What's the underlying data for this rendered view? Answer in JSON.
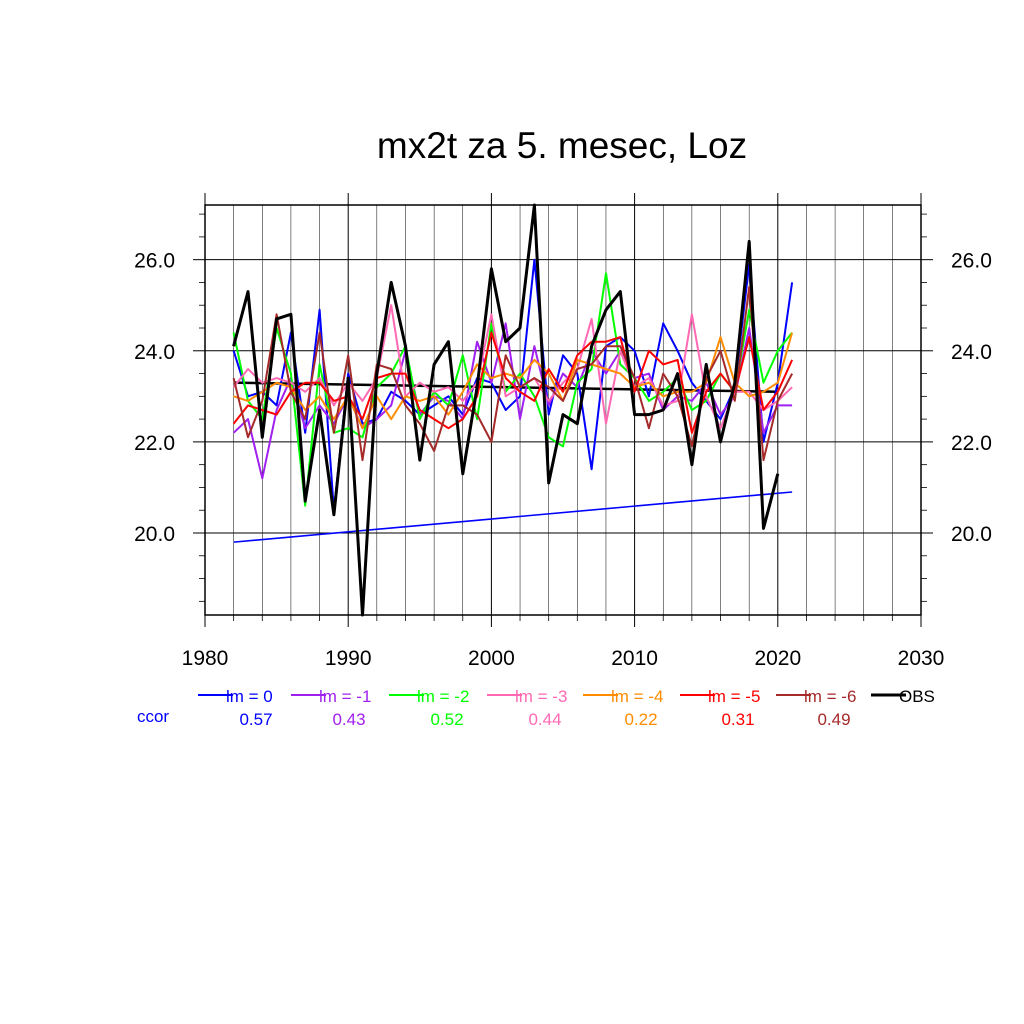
{
  "chart_data": {
    "type": "line",
    "title": "mx2t za 5. mesec, Loz",
    "xlabel": "",
    "ylabel": "",
    "xlim": [
      1980,
      2030
    ],
    "ylim": [
      18.2,
      27.2
    ],
    "x_ticks": [
      1980,
      1990,
      2000,
      2010,
      2020,
      2030
    ],
    "y_ticks": [
      20.0,
      22.0,
      24.0,
      26.0
    ],
    "y_tick_labels": [
      "20.0",
      "22.0",
      "24.0",
      "26.0"
    ],
    "grid": true,
    "legend_position": "bottom",
    "ccor_label": "ccor",
    "ccor_color": "#0000ff",
    "series": [
      {
        "name": "lm = 0",
        "color": "#0000ff",
        "ccor": "0.57",
        "x": [
          1982,
          1983,
          1984,
          1985,
          1986,
          1987,
          1988,
          1989,
          1990,
          1991,
          1992,
          1993,
          1994,
          1995,
          1996,
          1997,
          1998,
          1999,
          2000,
          2001,
          2002,
          2003,
          2004,
          2005,
          2006,
          2007,
          2008,
          2009,
          2010,
          2011,
          2012,
          2013,
          2014,
          2015,
          2016,
          2017,
          2018,
          2019,
          2020,
          2021
        ],
        "values": [
          24.0,
          23.0,
          23.1,
          22.8,
          24.4,
          22.2,
          24.9,
          20.5,
          23.5,
          22.4,
          22.5,
          23.1,
          22.9,
          22.6,
          22.8,
          23.0,
          22.6,
          23.4,
          23.3,
          22.7,
          23.0,
          26.0,
          22.6,
          23.9,
          23.5,
          21.4,
          24.1,
          24.3,
          24.0,
          23.0,
          24.6,
          24.0,
          23.3,
          22.9,
          22.5,
          23.2,
          25.9,
          22.0,
          23.3,
          25.5
        ]
      },
      {
        "name": "lm = -1",
        "color": "#a020f0",
        "ccor": "0.43",
        "x": [
          1982,
          1983,
          1984,
          1985,
          1986,
          1987,
          1988,
          1989,
          1990,
          1991,
          1992,
          1993,
          1994,
          1995,
          1996,
          1997,
          1998,
          1999,
          2000,
          2001,
          2002,
          2003,
          2004,
          2005,
          2006,
          2007,
          2008,
          2009,
          2010,
          2011,
          2012,
          2013,
          2014,
          2015,
          2016,
          2017,
          2018,
          2019,
          2020,
          2021
        ],
        "values": [
          22.2,
          22.5,
          21.2,
          22.7,
          23.4,
          22.3,
          22.8,
          22.4,
          23.0,
          22.3,
          22.5,
          22.8,
          24.0,
          22.6,
          23.0,
          22.9,
          22.5,
          24.2,
          23.3,
          24.6,
          22.5,
          24.1,
          22.8,
          23.5,
          23.2,
          24.0,
          23.5,
          24.0,
          23.4,
          23.5,
          22.7,
          23.0,
          22.9,
          23.3,
          22.6,
          23.0,
          24.5,
          22.2,
          22.8,
          22.8
        ]
      },
      {
        "name": "lm = -2",
        "color": "#00ff00",
        "ccor": "0.52",
        "x": [
          1982,
          1983,
          1984,
          1985,
          1986,
          1987,
          1988,
          1989,
          1990,
          1991,
          1992,
          1993,
          1994,
          1995,
          1996,
          1997,
          1998,
          1999,
          2000,
          2001,
          2002,
          2003,
          2004,
          2005,
          2006,
          2007,
          2008,
          2009,
          2010,
          2011,
          2012,
          2013,
          2014,
          2015,
          2016,
          2017,
          2018,
          2019,
          2020,
          2021
        ],
        "values": [
          24.4,
          22.9,
          22.5,
          24.5,
          23.5,
          20.6,
          23.7,
          22.2,
          22.3,
          22.1,
          23.2,
          23.5,
          24.1,
          22.5,
          23.1,
          22.8,
          23.9,
          22.5,
          24.6,
          23.1,
          23.5,
          23.0,
          22.1,
          21.9,
          23.3,
          23.6,
          25.7,
          23.7,
          23.4,
          22.9,
          23.1,
          23.4,
          22.7,
          22.9,
          23.5,
          23.1,
          24.9,
          23.3,
          24.0,
          24.4
        ]
      },
      {
        "name": "lm = -3",
        "color": "#ff69b4",
        "ccor": "0.44",
        "x": [
          1982,
          1983,
          1984,
          1985,
          1986,
          1987,
          1988,
          1989,
          1990,
          1991,
          1992,
          1993,
          1994,
          1995,
          1996,
          1997,
          1998,
          1999,
          2000,
          2001,
          2002,
          2003,
          2004,
          2005,
          2006,
          2007,
          2008,
          2009,
          2010,
          2011,
          2012,
          2013,
          2014,
          2015,
          2016,
          2017,
          2018,
          2019,
          2020,
          2021
        ],
        "values": [
          23.2,
          23.6,
          23.3,
          23.4,
          23.3,
          23.1,
          23.4,
          22.8,
          23.3,
          22.9,
          23.4,
          25.0,
          23.0,
          23.3,
          23.1,
          23.2,
          22.9,
          23.3,
          24.8,
          23.0,
          23.2,
          23.4,
          22.9,
          23.3,
          23.6,
          24.7,
          22.4,
          24.0,
          23.2,
          23.4,
          22.8,
          22.9,
          24.8,
          23.0,
          22.3,
          23.1,
          23.1,
          22.7,
          22.9,
          23.2
        ]
      },
      {
        "name": "lm = -4",
        "color": "#ff8c00",
        "ccor": "0.22",
        "x": [
          1982,
          1983,
          1984,
          1985,
          1986,
          1987,
          1988,
          1989,
          1990,
          1991,
          1992,
          1993,
          1994,
          1995,
          1996,
          1997,
          1998,
          1999,
          2000,
          2001,
          2002,
          2003,
          2004,
          2005,
          2006,
          2007,
          2008,
          2009,
          2010,
          2011,
          2012,
          2013,
          2014,
          2015,
          2016,
          2017,
          2018,
          2019,
          2020,
          2021
        ],
        "values": [
          23.0,
          22.9,
          23.1,
          23.3,
          23.2,
          22.7,
          23.0,
          22.5,
          23.0,
          22.3,
          23.0,
          22.5,
          23.0,
          22.9,
          23.0,
          22.6,
          23.1,
          23.7,
          23.4,
          23.5,
          23.4,
          23.8,
          23.5,
          22.9,
          23.8,
          23.7,
          23.6,
          23.5,
          23.2,
          23.3,
          23.0,
          23.1,
          23.1,
          23.3,
          24.3,
          23.3,
          23.0,
          23.1,
          23.3,
          24.4
        ]
      },
      {
        "name": "lm = -5",
        "color": "#ff0000",
        "ccor": "0.31",
        "x": [
          1982,
          1983,
          1984,
          1985,
          1986,
          1987,
          1988,
          1989,
          1990,
          1991,
          1992,
          1993,
          1994,
          1995,
          1996,
          1997,
          1998,
          1999,
          2000,
          2001,
          2002,
          2003,
          2004,
          2005,
          2006,
          2007,
          2008,
          2009,
          2010,
          2011,
          2012,
          2013,
          2014,
          2015,
          2016,
          2017,
          2018,
          2019,
          2020,
          2021
        ],
        "values": [
          22.4,
          22.8,
          22.7,
          22.6,
          23.1,
          23.3,
          23.3,
          22.9,
          23.0,
          22.5,
          23.4,
          23.5,
          23.5,
          22.7,
          22.5,
          22.3,
          22.5,
          23.0,
          24.4,
          23.4,
          23.1,
          22.9,
          23.6,
          23.1,
          23.9,
          24.2,
          24.2,
          24.3,
          23.1,
          24.0,
          23.7,
          23.8,
          22.2,
          23.1,
          23.5,
          23.1,
          24.3,
          22.7,
          23.1,
          23.8
        ]
      },
      {
        "name": "lm = -6",
        "color": "#a52a2a",
        "ccor": "0.49",
        "x": [
          1982,
          1983,
          1984,
          1985,
          1986,
          1987,
          1988,
          1989,
          1990,
          1991,
          1992,
          1993,
          1994,
          1995,
          1996,
          1997,
          1998,
          1999,
          2000,
          2001,
          2002,
          2003,
          2004,
          2005,
          2006,
          2007,
          2008,
          2009,
          2010,
          2011,
          2012,
          2013,
          2014,
          2015,
          2016,
          2017,
          2018,
          2019,
          2020,
          2021
        ],
        "values": [
          23.4,
          22.1,
          22.9,
          24.8,
          23.1,
          22.5,
          24.4,
          22.2,
          23.9,
          21.6,
          23.7,
          23.6,
          22.8,
          22.4,
          21.8,
          22.8,
          22.8,
          22.6,
          22.0,
          23.9,
          23.2,
          23.4,
          23.2,
          22.9,
          23.6,
          23.7,
          24.1,
          24.1,
          23.4,
          22.3,
          23.5,
          23.0,
          21.9,
          23.4,
          24.0,
          22.9,
          25.4,
          21.6,
          22.9,
          23.5
        ]
      },
      {
        "name": "OBS",
        "color": "#000000",
        "ccor": "",
        "x": [
          1982,
          1983,
          1984,
          1985,
          1986,
          1987,
          1988,
          1989,
          1990,
          1991,
          1992,
          1993,
          1994,
          1995,
          1996,
          1997,
          1998,
          1999,
          2000,
          2001,
          2002,
          2003,
          2004,
          2005,
          2006,
          2007,
          2008,
          2009,
          2010,
          2011,
          2012,
          2013,
          2014,
          2015,
          2016,
          2017,
          2018,
          2019,
          2020
        ],
        "values": [
          24.1,
          25.3,
          22.1,
          24.7,
          24.8,
          20.7,
          22.7,
          20.4,
          23.4,
          18.2,
          23.5,
          25.5,
          24.1,
          21.6,
          23.7,
          24.2,
          21.3,
          23.2,
          25.8,
          24.2,
          24.5,
          27.2,
          21.1,
          22.6,
          22.4,
          24.1,
          24.9,
          25.3,
          22.6,
          22.6,
          22.7,
          23.5,
          21.5,
          23.7,
          22.0,
          23.3,
          26.4,
          20.1,
          21.3
        ]
      }
    ],
    "trend_lines": [
      {
        "color": "#000000",
        "x": [
          1982,
          2020
        ],
        "values": [
          23.3,
          23.1
        ]
      },
      {
        "color": "#0000ff",
        "x": [
          1982,
          2021
        ],
        "values": [
          19.8,
          20.9
        ]
      }
    ]
  }
}
